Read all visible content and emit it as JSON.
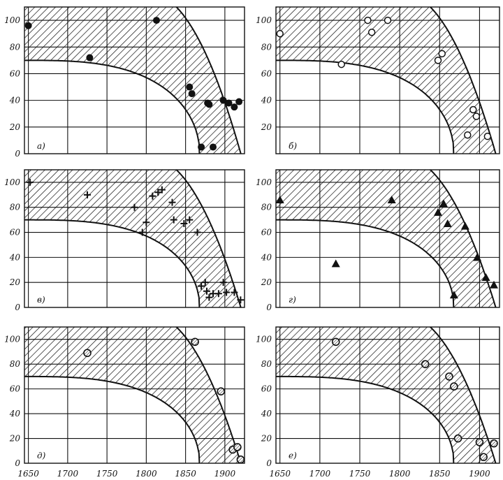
{
  "colors": {
    "ink": "#111111",
    "paper": "#ffffff"
  },
  "shared_xticks": [
    1650,
    1700,
    1750,
    1800,
    1850,
    1900
  ],
  "chart_data": [
    {
      "panel": "а)",
      "type": "scatter",
      "marker": "filled-circle",
      "xlim": [
        1645,
        1925
      ],
      "ylim": [
        0,
        110
      ],
      "yticks": [
        0,
        20,
        40,
        60,
        80,
        100
      ],
      "points": [
        [
          1650,
          96
        ],
        [
          1728,
          72
        ],
        [
          1813,
          100
        ],
        [
          1855,
          50
        ],
        [
          1858,
          45
        ],
        [
          1870,
          5
        ],
        [
          1878,
          38
        ],
        [
          1880,
          37
        ],
        [
          1885,
          5
        ],
        [
          1898,
          40
        ],
        [
          1905,
          38
        ],
        [
          1912,
          35
        ],
        [
          1918,
          39
        ]
      ]
    },
    {
      "panel": "б)",
      "type": "scatter",
      "marker": "open-circle",
      "xlim": [
        1645,
        1925
      ],
      "ylim": [
        0,
        110
      ],
      "yticks": [
        20,
        40,
        60,
        80,
        100
      ],
      "points": [
        [
          1650,
          90
        ],
        [
          1727,
          67
        ],
        [
          1760,
          100
        ],
        [
          1765,
          91
        ],
        [
          1785,
          100
        ],
        [
          1848,
          70
        ],
        [
          1853,
          75
        ],
        [
          1885,
          14
        ],
        [
          1892,
          33
        ],
        [
          1896,
          28
        ],
        [
          1910,
          13
        ]
      ]
    },
    {
      "panel": "в)",
      "type": "scatter",
      "marker": "cross",
      "xlim": [
        1645,
        1925
      ],
      "ylim": [
        0,
        110
      ],
      "yticks": [
        0,
        20,
        40,
        60,
        80,
        100
      ],
      "points": [
        [
          1652,
          100
        ],
        [
          1725,
          90
        ],
        [
          1785,
          80
        ],
        [
          1795,
          60
        ],
        [
          1800,
          68
        ],
        [
          1808,
          89
        ],
        [
          1815,
          92
        ],
        [
          1820,
          94
        ],
        [
          1833,
          84
        ],
        [
          1835,
          70
        ],
        [
          1848,
          67
        ],
        [
          1855,
          70
        ],
        [
          1865,
          60
        ],
        [
          1870,
          17
        ],
        [
          1875,
          20
        ],
        [
          1877,
          13
        ],
        [
          1880,
          8
        ],
        [
          1885,
          11
        ],
        [
          1892,
          11
        ],
        [
          1898,
          20
        ],
        [
          1902,
          12
        ],
        [
          1912,
          12
        ],
        [
          1920,
          6
        ]
      ]
    },
    {
      "panel": "г)",
      "type": "scatter",
      "marker": "filled-triangle",
      "xlim": [
        1645,
        1925
      ],
      "ylim": [
        0,
        110
      ],
      "yticks": [
        0,
        20,
        40,
        60,
        80,
        100
      ],
      "points": [
        [
          1650,
          86
        ],
        [
          1720,
          35
        ],
        [
          1790,
          86
        ],
        [
          1848,
          76
        ],
        [
          1855,
          83
        ],
        [
          1860,
          67
        ],
        [
          1868,
          10
        ],
        [
          1882,
          65
        ],
        [
          1897,
          40
        ],
        [
          1908,
          24
        ],
        [
          1918,
          18
        ]
      ]
    },
    {
      "panel": "д)",
      "type": "scatter",
      "marker": "hatched-circle",
      "xlim": [
        1645,
        1925
      ],
      "ylim": [
        0,
        110
      ],
      "yticks": [
        0,
        20,
        40,
        60,
        80,
        100
      ],
      "points": [
        [
          1725,
          89
        ],
        [
          1862,
          98
        ],
        [
          1895,
          58
        ],
        [
          1910,
          11
        ],
        [
          1916,
          13
        ],
        [
          1920,
          3
        ]
      ]
    },
    {
      "panel": "е)",
      "type": "scatter",
      "marker": "hatched-circle",
      "xlim": [
        1645,
        1925
      ],
      "ylim": [
        0,
        110
      ],
      "yticks": [
        0,
        20,
        40,
        60,
        80,
        100
      ],
      "points": [
        [
          1720,
          98
        ],
        [
          1832,
          80
        ],
        [
          1862,
          70
        ],
        [
          1868,
          62
        ],
        [
          1873,
          20
        ],
        [
          1900,
          17
        ],
        [
          1905,
          5
        ],
        [
          1918,
          16
        ]
      ]
    }
  ]
}
